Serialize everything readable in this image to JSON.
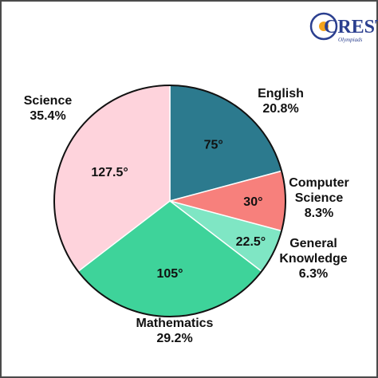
{
  "logo": {
    "text": "CREST",
    "subtext": "Olympiads"
  },
  "chart_data": {
    "type": "pie",
    "title": "",
    "slices": [
      {
        "label": "English",
        "percent_label": "20.8%",
        "angle": 75,
        "angle_label": "75°",
        "color": "#2c7a8e"
      },
      {
        "label": "Computer Science",
        "percent_label": "8.3%",
        "angle": 30,
        "angle_label": "30°",
        "color": "#f7807c"
      },
      {
        "label": "General Knowledge",
        "percent_label": "6.3%",
        "angle": 22.5,
        "angle_label": "22.5°",
        "color": "#7fe6c4"
      },
      {
        "label": "Mathematics",
        "percent_label": "29.2%",
        "angle": 105,
        "angle_label": "105°",
        "color": "#3ed39a"
      },
      {
        "label": "Science",
        "percent_label": "35.4%",
        "angle": 127.5,
        "angle_label": "127.5°",
        "color": "#fed3dc"
      }
    ]
  }
}
